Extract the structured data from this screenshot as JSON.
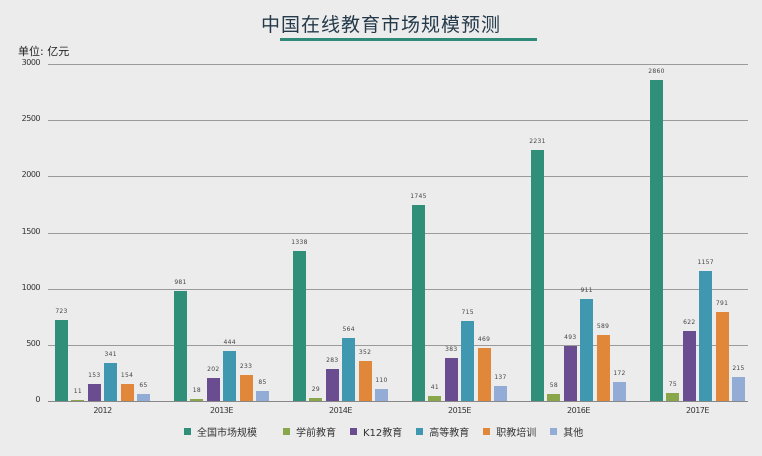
{
  "title": "中国在线教育市场规模预测",
  "unit_label": "单位: 亿元",
  "colors": {
    "title_underline": "#2f8a77",
    "series": [
      "#2f8f79",
      "#8aa64a",
      "#6a4d91",
      "#3f97b0",
      "#e0873a",
      "#93acd6"
    ]
  },
  "chart_data": {
    "type": "bar",
    "title": "中国在线教育市场规模预测",
    "xlabel": "",
    "ylabel": "单位: 亿元",
    "ylim": [
      0,
      3000
    ],
    "yticks": [
      0,
      500,
      1000,
      1500,
      2000,
      2500,
      3000
    ],
    "grid": true,
    "legend_position": "bottom",
    "categories": [
      "2012",
      "2013E",
      "2014E",
      "2015E",
      "2016E",
      "2017E"
    ],
    "series": [
      {
        "name": "全国市场规模",
        "values": [
          723,
          981,
          1338,
          1745,
          2231,
          2860
        ]
      },
      {
        "name": "学前教育",
        "values": [
          11,
          18,
          29,
          41,
          58,
          75
        ]
      },
      {
        "name": "K12教育",
        "values": [
          153,
          202,
          283,
          383,
          493,
          622
        ]
      },
      {
        "name": "高等教育",
        "values": [
          341,
          444,
          564,
          715,
          911,
          1157
        ]
      },
      {
        "name": "职教培训",
        "values": [
          154,
          233,
          352,
          469,
          589,
          791
        ]
      },
      {
        "name": "其他",
        "values": [
          65,
          85,
          110,
          137,
          172,
          215
        ]
      }
    ]
  }
}
